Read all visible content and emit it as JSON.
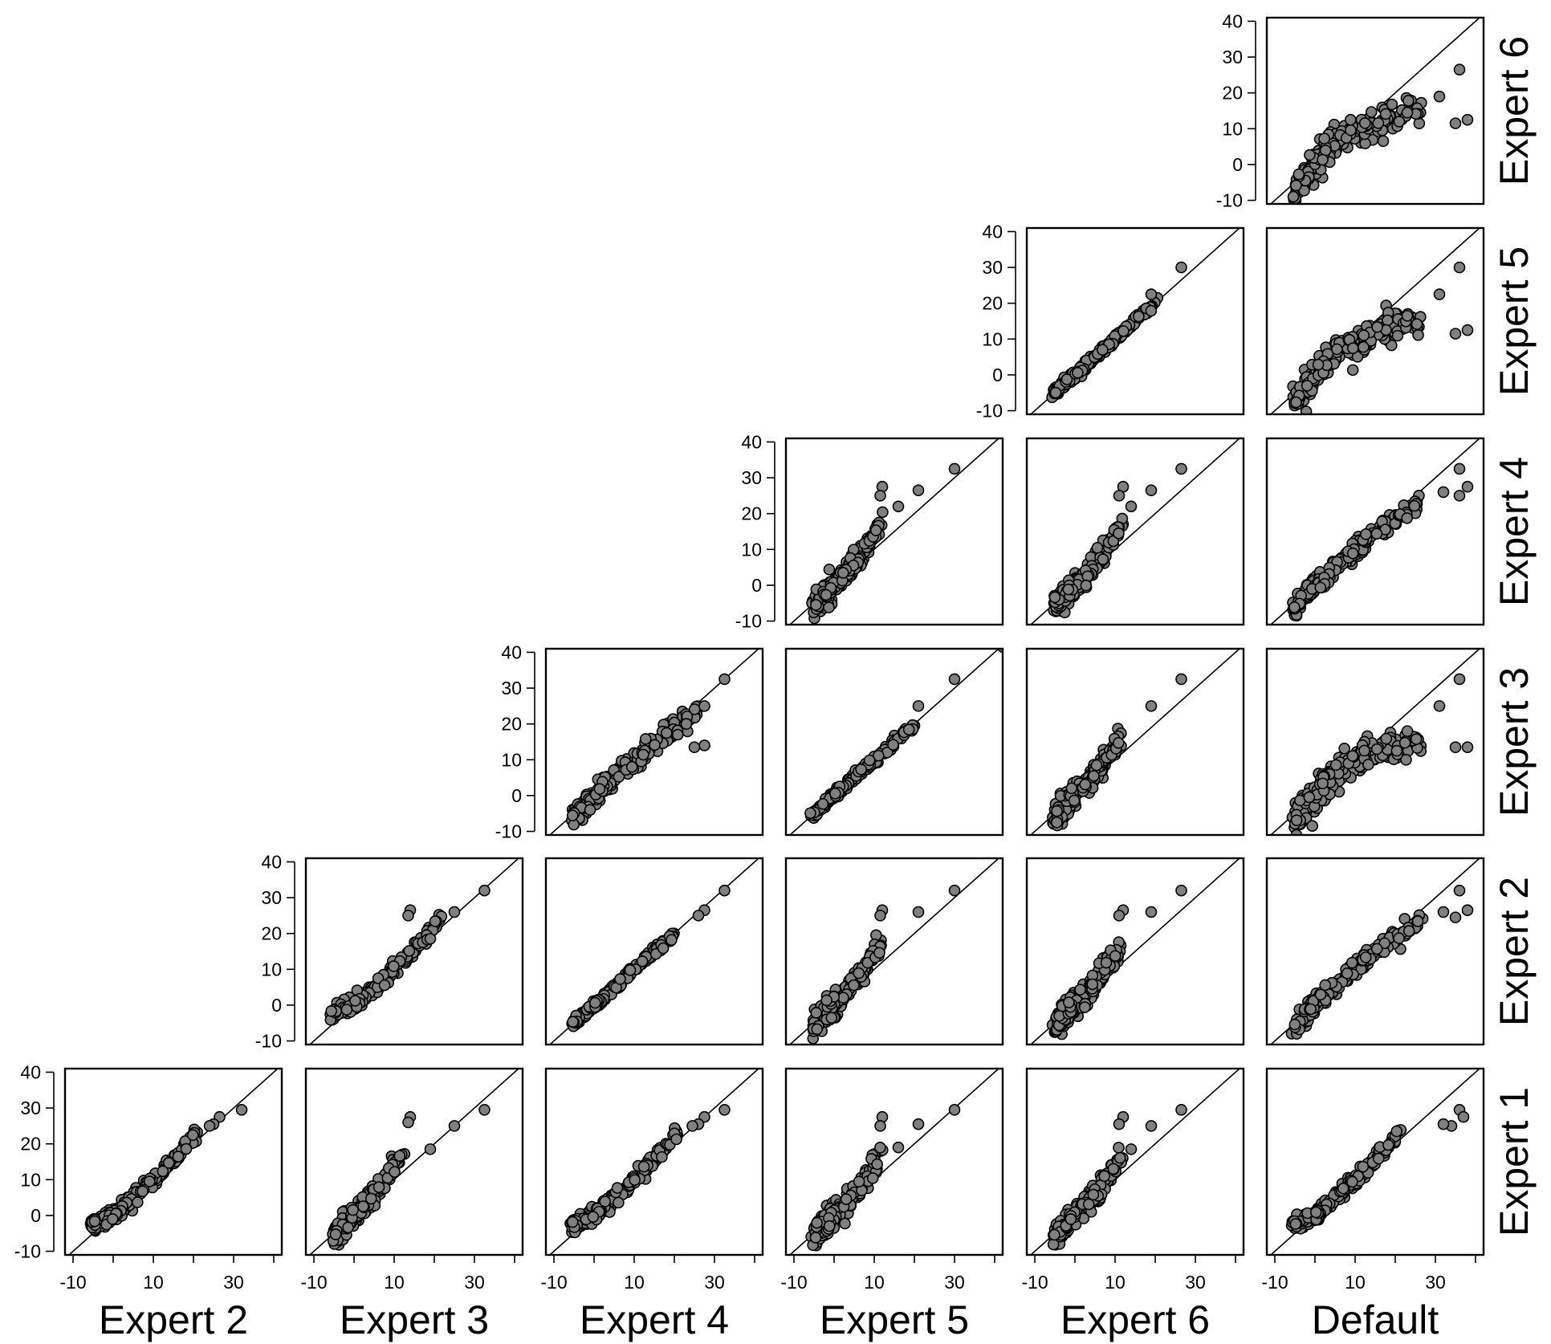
{
  "chart_data": {
    "type": "scatter",
    "description_of_layout_in_words": "lower-triangular scatterplot matrix",
    "x_axis_ticks": [
      "-10",
      "10",
      "30"
    ],
    "y_axis_ticks": [
      "40",
      "30",
      "20",
      "10",
      "0",
      "-10"
    ],
    "xlim": [
      -12,
      42
    ],
    "ylim": [
      -11,
      41
    ],
    "identity_line": true,
    "marker_color": "#808080",
    "marker_edge_color": "#000000",
    "column_labels": [
      "Expert 2",
      "Expert 3",
      "Expert 4",
      "Expert 5",
      "Expert 6",
      "Default"
    ],
    "row_labels": [
      "Expert 6",
      "Expert 5",
      "Expert 4",
      "Expert 3",
      "Expert 2",
      "Expert 1"
    ],
    "panels": [
      {
        "x_var": "Default",
        "y_var": "Expert 6",
        "relation": "concave",
        "outliers": [
          [
            36,
            26.5
          ],
          [
            38,
            12.5
          ],
          [
            35,
            11.5
          ],
          [
            31,
            19
          ],
          [
            23,
            14.5
          ]
        ]
      },
      {
        "x_var": "Expert 6",
        "y_var": "Expert 5",
        "relation": "identity",
        "outliers": [
          [
            26.5,
            30
          ],
          [
            19,
            22.5
          ]
        ]
      },
      {
        "x_var": "Default",
        "y_var": "Expert 5",
        "relation": "concave",
        "outliers": [
          [
            36,
            30
          ],
          [
            38,
            12.5
          ],
          [
            35,
            11.5
          ],
          [
            31,
            22.5
          ],
          [
            23,
            16.5
          ]
        ]
      },
      {
        "x_var": "Expert 5",
        "y_var": "Expert 4",
        "relation": "convex",
        "outliers": [
          [
            30,
            32.5
          ],
          [
            21,
            26.5
          ],
          [
            12,
            27.5
          ],
          [
            11.5,
            25
          ],
          [
            16,
            22
          ]
        ]
      },
      {
        "x_var": "Expert 6",
        "y_var": "Expert 4",
        "relation": "convex",
        "outliers": [
          [
            26.5,
            32.5
          ],
          [
            19,
            26.5
          ],
          [
            12,
            27.5
          ],
          [
            11,
            25
          ],
          [
            14,
            22
          ]
        ]
      },
      {
        "x_var": "Default",
        "y_var": "Expert 4",
        "relation": "slight-concave",
        "outliers": [
          [
            36,
            32.5
          ],
          [
            38,
            27.5
          ],
          [
            36,
            25
          ],
          [
            32,
            26
          ]
        ]
      },
      {
        "x_var": "Expert 4",
        "y_var": "Expert 3",
        "relation": "slight-concave",
        "outliers": [
          [
            32.5,
            32.5
          ],
          [
            27.5,
            25
          ],
          [
            27.5,
            14
          ],
          [
            25,
            13.5
          ],
          [
            23,
            20
          ]
        ]
      },
      {
        "x_var": "Expert 5",
        "y_var": "Expert 3",
        "relation": "identity",
        "outliers": [
          [
            30,
            32.5
          ],
          [
            21,
            25
          ],
          [
            42,
            41.5
          ]
        ]
      },
      {
        "x_var": "Expert 6",
        "y_var": "Expert 3",
        "relation": "convex",
        "outliers": [
          [
            26.5,
            32.5
          ],
          [
            19,
            25
          ]
        ]
      },
      {
        "x_var": "Default",
        "y_var": "Expert 3",
        "relation": "concave",
        "outliers": [
          [
            36,
            32.5
          ],
          [
            38,
            13.5
          ],
          [
            35,
            13.5
          ],
          [
            31,
            25
          ],
          [
            23,
            18
          ]
        ]
      },
      {
        "x_var": "Expert 3",
        "y_var": "Expert 2",
        "relation": "slight-convex",
        "outliers": [
          [
            32.5,
            32
          ],
          [
            25,
            26
          ],
          [
            14,
            26.5
          ],
          [
            13.5,
            25
          ],
          [
            19,
            18.5
          ]
        ]
      },
      {
        "x_var": "Expert 4",
        "y_var": "Expert 2",
        "relation": "identity",
        "outliers": [
          [
            32.5,
            32
          ],
          [
            27.5,
            26.5
          ],
          [
            26,
            25
          ]
        ]
      },
      {
        "x_var": "Expert 5",
        "y_var": "Expert 2",
        "relation": "convex",
        "outliers": [
          [
            30,
            32
          ],
          [
            21,
            26
          ],
          [
            12,
            26.5
          ],
          [
            11.5,
            25
          ]
        ]
      },
      {
        "x_var": "Expert 6",
        "y_var": "Expert 2",
        "relation": "convex",
        "outliers": [
          [
            26.5,
            32
          ],
          [
            19,
            26
          ],
          [
            12,
            26.5
          ],
          [
            11,
            25
          ]
        ]
      },
      {
        "x_var": "Default",
        "y_var": "Expert 2",
        "relation": "slight-concave",
        "outliers": [
          [
            36,
            32
          ],
          [
            38,
            26.5
          ],
          [
            35,
            24.5
          ],
          [
            32,
            26
          ]
        ]
      },
      {
        "x_var": "Expert 2",
        "y_var": "Expert 1",
        "relation": "slight-convex",
        "outliers": [
          [
            32,
            29.5
          ],
          [
            26.5,
            27.5
          ],
          [
            25,
            25.5
          ],
          [
            24,
            25
          ]
        ]
      },
      {
        "x_var": "Expert 3",
        "y_var": "Expert 1",
        "relation": "convex",
        "outliers": [
          [
            32.5,
            29.5
          ],
          [
            25,
            25
          ],
          [
            14,
            27.5
          ],
          [
            13.5,
            26
          ],
          [
            19,
            18.5
          ]
        ]
      },
      {
        "x_var": "Expert 4",
        "y_var": "Expert 1",
        "relation": "slight-convex",
        "outliers": [
          [
            32.5,
            29.5
          ],
          [
            27.5,
            27.5
          ],
          [
            26,
            25.5
          ],
          [
            24.5,
            25
          ]
        ]
      },
      {
        "x_var": "Expert 5",
        "y_var": "Expert 1",
        "relation": "convex",
        "outliers": [
          [
            30,
            29.5
          ],
          [
            21,
            25.5
          ],
          [
            12,
            27.5
          ],
          [
            11.5,
            25
          ],
          [
            16,
            19
          ]
        ]
      },
      {
        "x_var": "Expert 6",
        "y_var": "Expert 1",
        "relation": "convex",
        "outliers": [
          [
            26.5,
            29.5
          ],
          [
            19,
            25
          ],
          [
            12,
            27.5
          ],
          [
            11,
            25.5
          ],
          [
            14,
            18.5
          ]
        ]
      },
      {
        "x_var": "Default",
        "y_var": "Expert 1",
        "relation": "slight-convex",
        "outliers": [
          [
            36,
            29.5
          ],
          [
            37,
            27.5
          ],
          [
            34,
            25
          ],
          [
            32,
            25.5
          ]
        ]
      }
    ]
  }
}
